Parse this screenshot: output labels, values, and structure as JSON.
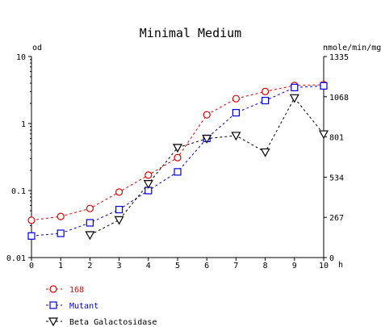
{
  "chart_data": {
    "type": "line",
    "title": "Minimal Medium",
    "left_axis_unit": "od",
    "right_axis_unit": "nmole/min/mg",
    "x_unit": "h",
    "x": [
      0,
      1,
      2,
      3,
      4,
      5,
      6,
      7,
      8,
      9,
      10
    ],
    "x_ticks": [
      "0",
      "1",
      "2",
      "3",
      "4",
      "5",
      "6",
      "7",
      "8",
      "9",
      "10"
    ],
    "xlim": [
      0,
      10
    ],
    "left_scale": "log",
    "left_ylim": [
      0.01,
      10
    ],
    "left_ticks": [
      {
        "value": 10,
        "label": "10"
      },
      {
        "value": 1,
        "label": "1"
      },
      {
        "value": 0.1,
        "label": "0.1"
      },
      {
        "value": 0.01,
        "label": "0.01"
      }
    ],
    "right_scale": "linear",
    "right_ylim": [
      0,
      1335
    ],
    "right_ticks": [
      {
        "value": 1335,
        "label": "1335"
      },
      {
        "value": 1068,
        "label": "1068"
      },
      {
        "value": 801,
        "label": "801"
      },
      {
        "value": 534,
        "label": "534"
      },
      {
        "value": 267,
        "label": "267"
      },
      {
        "value": 0,
        "label": "0"
      }
    ],
    "grid": false,
    "legend_position": "bottom-left",
    "series": [
      {
        "name": "168",
        "axis": "left",
        "color": "#e00000",
        "marker": "circle",
        "values": [
          0.036,
          0.041,
          0.054,
          0.095,
          0.17,
          0.31,
          1.35,
          2.35,
          3.0,
          3.7,
          3.8
        ]
      },
      {
        "name": "Mutant",
        "axis": "left",
        "color": "#0000e0",
        "marker": "square",
        "values": [
          0.021,
          0.023,
          0.033,
          0.052,
          0.1,
          0.19,
          0.6,
          1.45,
          2.2,
          3.45,
          3.65
        ]
      },
      {
        "name": "Beta Galactosidase",
        "axis": "right",
        "color": "#000000",
        "marker": "triangle-down",
        "values": [
          null,
          null,
          150,
          250,
          490,
          730,
          790,
          810,
          700,
          1060,
          820
        ]
      }
    ]
  }
}
